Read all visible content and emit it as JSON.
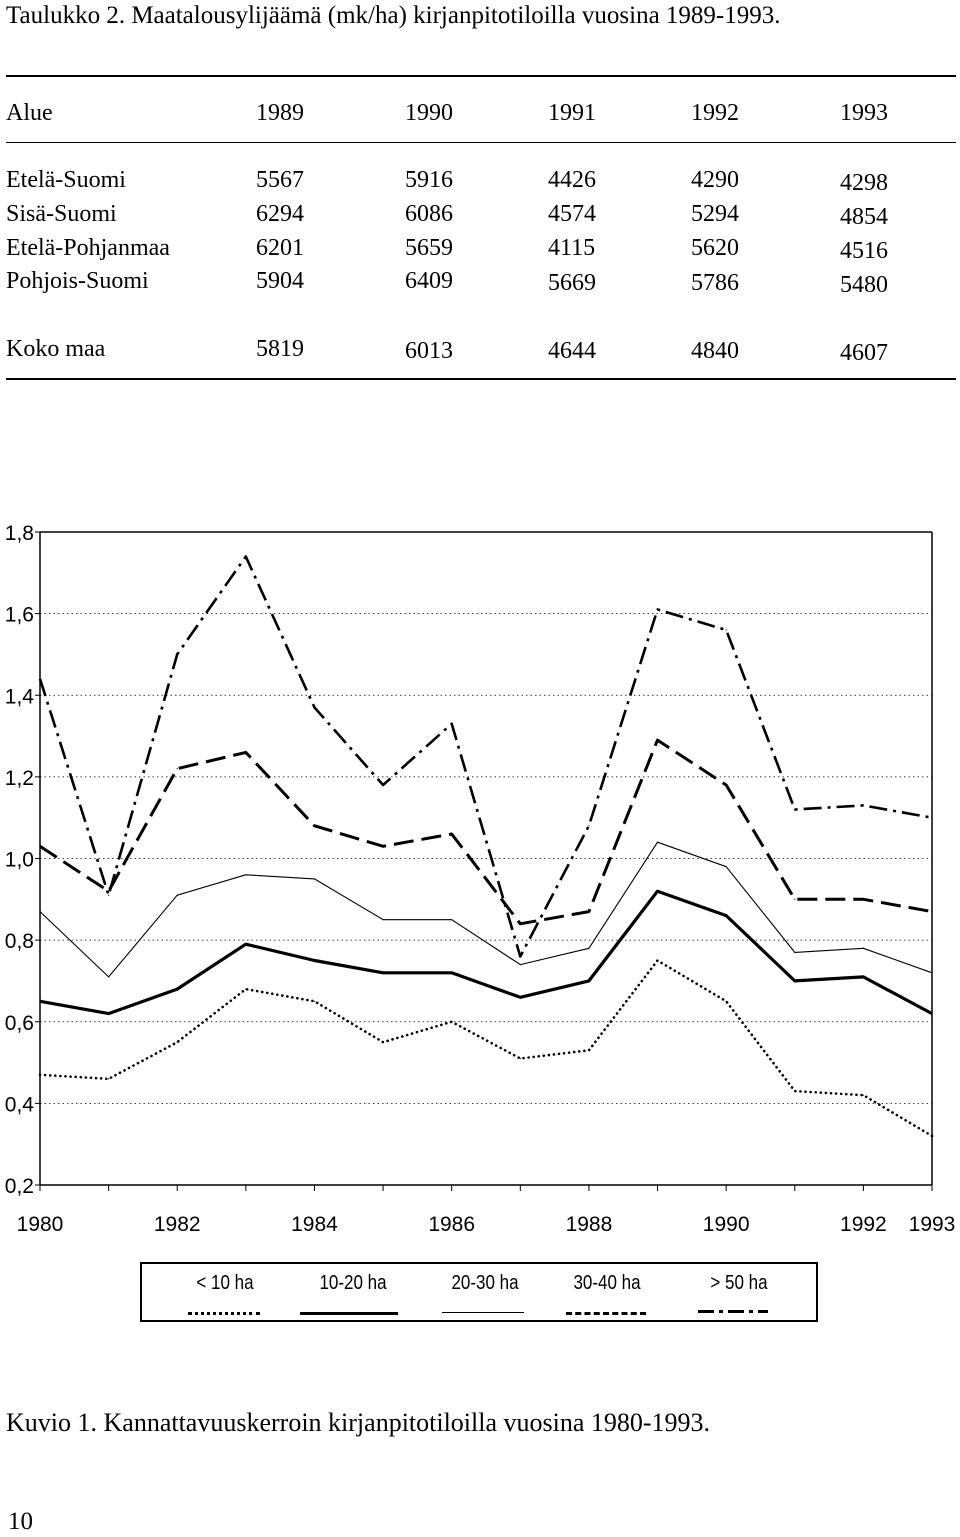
{
  "table": {
    "caption": "Taulukko 2. Maatalousylijäämä (mk/ha) kirjanpitotiloilla vuosina 1989-1993.",
    "header": [
      "Alue",
      "1989",
      "1990",
      "1991",
      "1992",
      "1993"
    ],
    "rows": [
      [
        "Etelä-Suomi",
        "5567",
        "5916",
        "4426",
        "4290",
        "4298"
      ],
      [
        "Sisä-Suomi",
        "6294",
        "6086",
        "4574",
        "5294",
        "4854"
      ],
      [
        "Etelä-Pohjanmaa",
        "6201",
        "5659",
        "4115",
        "5620",
        "4516"
      ],
      [
        "Pohjois-Suomi",
        "5904",
        "6409",
        "5669",
        "5786",
        "5480"
      ]
    ],
    "total": [
      "Koko maa",
      "5819",
      "6013",
      "4644",
      "4840",
      "4607"
    ]
  },
  "chart_data": {
    "type": "line",
    "x": [
      1980,
      1981,
      1982,
      1983,
      1984,
      1985,
      1986,
      1987,
      1988,
      1989,
      1990,
      1991,
      1992,
      1993
    ],
    "xticks": [
      "1980",
      "1982",
      "1984",
      "1986",
      "1988",
      "1990",
      "1992",
      "1993"
    ],
    "yticks": [
      "1,8",
      "1,6",
      "1,4",
      "1,2",
      "1,0",
      "0,8",
      "0,6",
      "0,4",
      "0,2"
    ],
    "ylim": [
      0.2,
      1.8
    ],
    "grid": "dotted horizontal",
    "legend_placement": "bottom",
    "series": [
      {
        "name": "< 10 ha",
        "style": "dotted",
        "values": [
          0.47,
          0.46,
          0.55,
          0.68,
          0.65,
          0.55,
          0.6,
          0.51,
          0.53,
          0.75,
          0.65,
          0.43,
          0.42,
          0.32
        ]
      },
      {
        "name": "10-20 ha",
        "style": "thick",
        "values": [
          0.65,
          0.62,
          0.68,
          0.79,
          0.75,
          0.72,
          0.72,
          0.66,
          0.7,
          0.92,
          0.86,
          0.7,
          0.71,
          0.62
        ]
      },
      {
        "name": "20-30 ha",
        "style": "thin",
        "values": [
          0.87,
          0.71,
          0.91,
          0.96,
          0.95,
          0.85,
          0.85,
          0.74,
          0.78,
          1.04,
          0.98,
          0.77,
          0.78,
          0.72
        ]
      },
      {
        "name": "30-40 ha",
        "style": "dashed",
        "values": [
          1.03,
          0.92,
          1.22,
          1.26,
          1.08,
          1.03,
          1.06,
          0.84,
          0.87,
          1.29,
          1.18,
          0.9,
          0.9,
          0.87
        ]
      },
      {
        "name": "> 50 ha",
        "style": "dashdot",
        "values": [
          1.44,
          0.91,
          1.5,
          1.74,
          1.37,
          1.18,
          1.33,
          0.76,
          1.08,
          1.61,
          1.56,
          1.12,
          1.13,
          1.1
        ]
      }
    ]
  },
  "figure_caption": "Kuvio 1. Kannattavuuskerroin kirjanpitotiloilla vuosina 1980-1993.",
  "page_number": "10"
}
